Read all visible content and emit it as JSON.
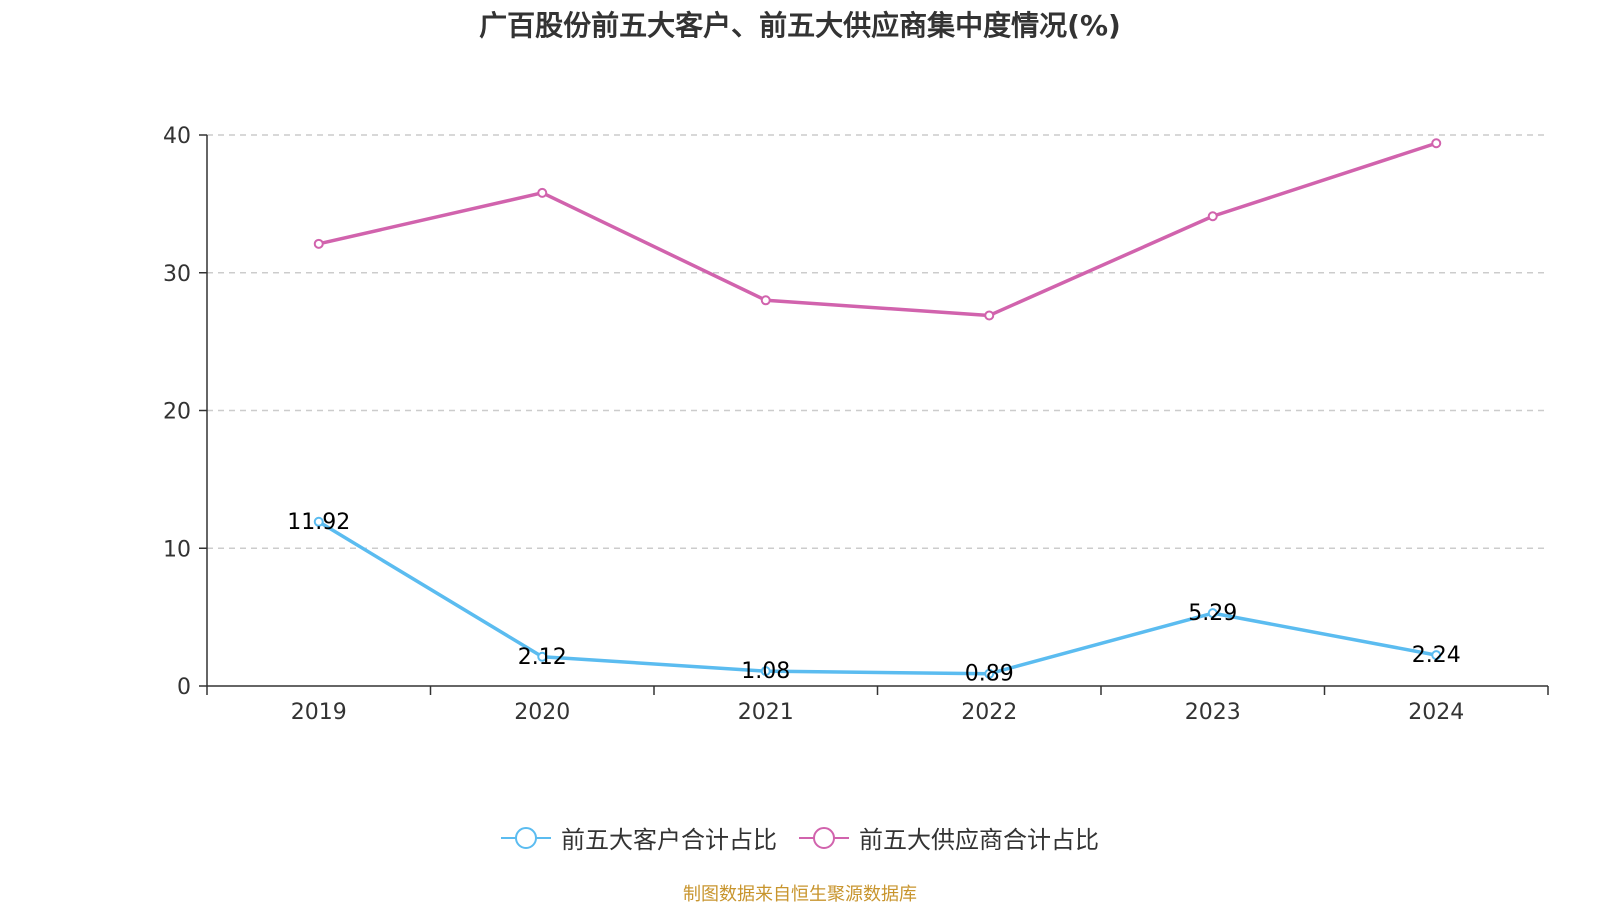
{
  "chart_data": {
    "type": "line",
    "title": "广百股份前五大客户、前五大供应商集中度情况(%)",
    "xlabel": "",
    "ylabel": "",
    "categories": [
      "2019",
      "2020",
      "2021",
      "2022",
      "2023",
      "2024"
    ],
    "ylim": [
      0,
      40
    ],
    "yticks": [
      "0",
      "10",
      "20",
      "30",
      "40"
    ],
    "grid": true,
    "legend_position": "bottom",
    "series": [
      {
        "name": "前五大客户合计占比",
        "color": "#5bbcf0",
        "values": [
          11.92,
          2.12,
          1.08,
          0.89,
          5.29,
          2.24
        ],
        "labels": [
          "11.92",
          "2.12",
          "1.08",
          "0.89",
          "5.29",
          "2.24"
        ]
      },
      {
        "name": "前五大供应商合计占比",
        "color": "#d163ad",
        "values": [
          32.1,
          35.8,
          28.0,
          26.9,
          34.1,
          39.4
        ],
        "labels": null
      }
    ],
    "source": "制图数据来自恒生聚源数据库"
  }
}
